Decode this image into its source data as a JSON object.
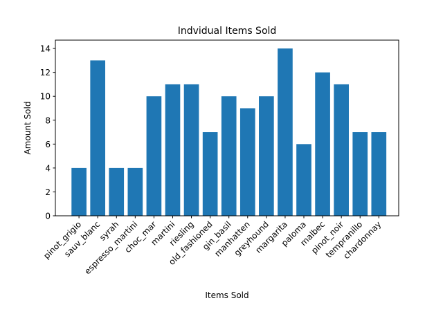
{
  "chart_data": {
    "type": "bar",
    "title": "Indvidual Items Sold",
    "xlabel": "Items Sold",
    "ylabel": "Amount Sold",
    "categories": [
      "pinot_grigio",
      "sauv_blanc",
      "syrah",
      "espresso_martini",
      "choc_mar",
      "martini",
      "riesling",
      "old_fashioned",
      "gin_basil",
      "manhatten",
      "greyhound",
      "margarita",
      "paloma",
      "malbec",
      "pinot_noir",
      "tempranillo",
      "chardonnay"
    ],
    "values": [
      4,
      13,
      4,
      4,
      10,
      11,
      11,
      7,
      10,
      9,
      10,
      14,
      6,
      12,
      11,
      7,
      7
    ],
    "ylim": [
      0,
      14.7
    ],
    "yticks": [
      "0",
      "2",
      "4",
      "6",
      "8",
      "10",
      "12",
      "14"
    ],
    "bar_color": "#1f77b4",
    "grid": false,
    "legend": "none"
  }
}
